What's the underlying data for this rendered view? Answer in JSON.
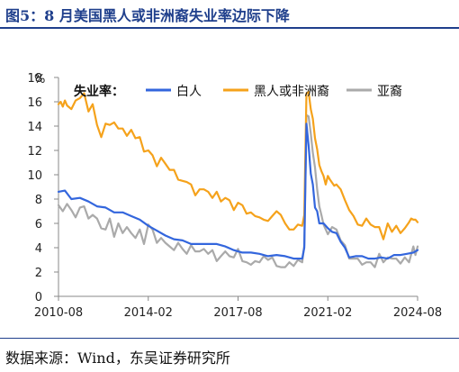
{
  "figure": {
    "title": "图5：8 月美国黑人或非洲裔失业率边际下降",
    "source": "数据来源：Wind，东吴证券研究所"
  },
  "chart_data": {
    "type": "line",
    "yunit": "%",
    "ylim": [
      0,
      18
    ],
    "yticks": [
      0,
      2,
      4,
      6,
      8,
      10,
      12,
      14,
      16,
      18
    ],
    "xlim": [
      "2010-08",
      "2024-08"
    ],
    "xticks": [
      "2010-08",
      "2014-02",
      "2017-08",
      "2021-02",
      "2024-08"
    ],
    "legend_title": "失业率：",
    "legend_position": "top",
    "grid": false,
    "series": [
      {
        "name": "白人",
        "color": "#3366dd",
        "points": [
          [
            "2010-08",
            8.6
          ],
          [
            "2010-11",
            8.7
          ],
          [
            "2011-02",
            8.0
          ],
          [
            "2011-06",
            8.1
          ],
          [
            "2011-10",
            7.8
          ],
          [
            "2012-02",
            7.4
          ],
          [
            "2012-06",
            7.3
          ],
          [
            "2012-10",
            6.9
          ],
          [
            "2013-02",
            6.9
          ],
          [
            "2013-06",
            6.6
          ],
          [
            "2013-10",
            6.3
          ],
          [
            "2014-02",
            5.8
          ],
          [
            "2014-06",
            5.4
          ],
          [
            "2014-10",
            5.0
          ],
          [
            "2015-02",
            4.7
          ],
          [
            "2015-06",
            4.6
          ],
          [
            "2015-10",
            4.3
          ],
          [
            "2016-02",
            4.3
          ],
          [
            "2016-06",
            4.3
          ],
          [
            "2016-10",
            4.3
          ],
          [
            "2017-02",
            4.1
          ],
          [
            "2017-06",
            3.8
          ],
          [
            "2017-10",
            3.6
          ],
          [
            "2018-02",
            3.6
          ],
          [
            "2018-06",
            3.5
          ],
          [
            "2018-10",
            3.3
          ],
          [
            "2019-02",
            3.4
          ],
          [
            "2019-06",
            3.3
          ],
          [
            "2019-10",
            3.1
          ],
          [
            "2020-02",
            3.1
          ],
          [
            "2020-03",
            4.0
          ],
          [
            "2020-04",
            14.2
          ],
          [
            "2020-05",
            12.4
          ],
          [
            "2020-06",
            10.1
          ],
          [
            "2020-07",
            9.2
          ],
          [
            "2020-08",
            7.3
          ],
          [
            "2020-09",
            7.0
          ],
          [
            "2020-10",
            6.0
          ],
          [
            "2020-12",
            6.0
          ],
          [
            "2021-02",
            5.6
          ],
          [
            "2021-04",
            5.3
          ],
          [
            "2021-06",
            5.2
          ],
          [
            "2021-08",
            4.5
          ],
          [
            "2021-10",
            4.0
          ],
          [
            "2021-12",
            3.2
          ],
          [
            "2022-03",
            3.3
          ],
          [
            "2022-06",
            3.3
          ],
          [
            "2022-09",
            3.1
          ],
          [
            "2022-12",
            3.1
          ],
          [
            "2023-03",
            3.2
          ],
          [
            "2023-06",
            3.1
          ],
          [
            "2023-09",
            3.4
          ],
          [
            "2023-12",
            3.4
          ],
          [
            "2024-03",
            3.5
          ],
          [
            "2024-06",
            3.6
          ],
          [
            "2024-08",
            3.8
          ]
        ]
      },
      {
        "name": "黑人或非洲裔",
        "color": "#f5a21b",
        "points": [
          [
            "2010-08",
            15.8
          ],
          [
            "2010-09",
            16.0
          ],
          [
            "2010-10",
            15.6
          ],
          [
            "2010-11",
            16.1
          ],
          [
            "2010-12",
            15.7
          ],
          [
            "2011-02",
            15.4
          ],
          [
            "2011-04",
            16.1
          ],
          [
            "2011-06",
            16.3
          ],
          [
            "2011-08",
            16.7
          ],
          [
            "2011-10",
            15.2
          ],
          [
            "2011-12",
            15.8
          ],
          [
            "2012-02",
            14.1
          ],
          [
            "2012-04",
            13.1
          ],
          [
            "2012-06",
            14.2
          ],
          [
            "2012-08",
            14.1
          ],
          [
            "2012-10",
            14.3
          ],
          [
            "2012-12",
            13.8
          ],
          [
            "2013-02",
            13.8
          ],
          [
            "2013-04",
            13.2
          ],
          [
            "2013-06",
            13.7
          ],
          [
            "2013-08",
            13.0
          ],
          [
            "2013-10",
            13.1
          ],
          [
            "2013-12",
            11.9
          ],
          [
            "2014-02",
            12.0
          ],
          [
            "2014-04",
            11.6
          ],
          [
            "2014-06",
            10.7
          ],
          [
            "2014-08",
            11.4
          ],
          [
            "2014-10",
            10.9
          ],
          [
            "2014-12",
            10.4
          ],
          [
            "2015-02",
            10.4
          ],
          [
            "2015-04",
            9.6
          ],
          [
            "2015-06",
            9.5
          ],
          [
            "2015-08",
            9.4
          ],
          [
            "2015-10",
            9.2
          ],
          [
            "2015-12",
            8.3
          ],
          [
            "2016-02",
            8.8
          ],
          [
            "2016-04",
            8.8
          ],
          [
            "2016-06",
            8.6
          ],
          [
            "2016-08",
            8.1
          ],
          [
            "2016-10",
            8.6
          ],
          [
            "2016-12",
            7.8
          ],
          [
            "2017-02",
            8.1
          ],
          [
            "2017-04",
            7.9
          ],
          [
            "2017-06",
            7.1
          ],
          [
            "2017-08",
            7.7
          ],
          [
            "2017-10",
            7.5
          ],
          [
            "2017-12",
            6.8
          ],
          [
            "2018-02",
            6.9
          ],
          [
            "2018-04",
            6.6
          ],
          [
            "2018-06",
            6.5
          ],
          [
            "2018-08",
            6.3
          ],
          [
            "2018-10",
            6.2
          ],
          [
            "2018-12",
            6.6
          ],
          [
            "2019-02",
            7.0
          ],
          [
            "2019-04",
            6.7
          ],
          [
            "2019-06",
            6.0
          ],
          [
            "2019-08",
            5.5
          ],
          [
            "2019-10",
            5.5
          ],
          [
            "2019-12",
            5.9
          ],
          [
            "2020-02",
            5.8
          ],
          [
            "2020-03",
            6.7
          ],
          [
            "2020-04",
            16.7
          ],
          [
            "2020-05",
            16.8
          ],
          [
            "2020-06",
            15.4
          ],
          [
            "2020-07",
            14.6
          ],
          [
            "2020-08",
            13.0
          ],
          [
            "2020-09",
            12.1
          ],
          [
            "2020-10",
            10.8
          ],
          [
            "2020-11",
            10.3
          ],
          [
            "2020-12",
            9.9
          ],
          [
            "2021-01",
            9.2
          ],
          [
            "2021-02",
            9.9
          ],
          [
            "2021-03",
            9.6
          ],
          [
            "2021-05",
            9.1
          ],
          [
            "2021-06",
            9.2
          ],
          [
            "2021-08",
            8.8
          ],
          [
            "2021-10",
            7.9
          ],
          [
            "2021-12",
            7.1
          ],
          [
            "2022-02",
            6.6
          ],
          [
            "2022-04",
            5.9
          ],
          [
            "2022-06",
            5.8
          ],
          [
            "2022-08",
            6.4
          ],
          [
            "2022-10",
            5.9
          ],
          [
            "2022-12",
            5.7
          ],
          [
            "2023-02",
            5.7
          ],
          [
            "2023-04",
            4.7
          ],
          [
            "2023-06",
            6.0
          ],
          [
            "2023-08",
            5.3
          ],
          [
            "2023-10",
            5.8
          ],
          [
            "2023-12",
            5.2
          ],
          [
            "2024-02",
            5.6
          ],
          [
            "2024-04",
            6.1
          ],
          [
            "2024-05",
            6.4
          ],
          [
            "2024-06",
            6.3
          ],
          [
            "2024-07",
            6.3
          ],
          [
            "2024-08",
            6.1
          ]
        ]
      },
      {
        "name": "亚裔",
        "color": "#aaaaaa",
        "points": [
          [
            "2010-08",
            7.5
          ],
          [
            "2010-10",
            7.0
          ],
          [
            "2010-12",
            7.6
          ],
          [
            "2011-02",
            7.1
          ],
          [
            "2011-04",
            6.5
          ],
          [
            "2011-06",
            7.3
          ],
          [
            "2011-08",
            7.4
          ],
          [
            "2011-10",
            6.4
          ],
          [
            "2011-12",
            6.7
          ],
          [
            "2012-02",
            6.4
          ],
          [
            "2012-04",
            5.6
          ],
          [
            "2012-06",
            5.5
          ],
          [
            "2012-08",
            6.4
          ],
          [
            "2012-10",
            4.9
          ],
          [
            "2012-12",
            6.0
          ],
          [
            "2013-02",
            5.2
          ],
          [
            "2013-04",
            5.7
          ],
          [
            "2013-06",
            5.2
          ],
          [
            "2013-08",
            4.8
          ],
          [
            "2013-10",
            5.5
          ],
          [
            "2013-12",
            4.3
          ],
          [
            "2014-02",
            5.9
          ],
          [
            "2014-04",
            5.5
          ],
          [
            "2014-06",
            4.4
          ],
          [
            "2014-08",
            4.8
          ],
          [
            "2014-10",
            4.4
          ],
          [
            "2014-12",
            4.1
          ],
          [
            "2015-02",
            3.8
          ],
          [
            "2015-04",
            4.4
          ],
          [
            "2015-06",
            3.9
          ],
          [
            "2015-08",
            3.5
          ],
          [
            "2015-10",
            4.2
          ],
          [
            "2015-12",
            3.7
          ],
          [
            "2016-02",
            3.7
          ],
          [
            "2016-04",
            3.9
          ],
          [
            "2016-06",
            3.5
          ],
          [
            "2016-08",
            3.8
          ],
          [
            "2016-10",
            2.9
          ],
          [
            "2016-12",
            3.3
          ],
          [
            "2017-02",
            3.7
          ],
          [
            "2017-04",
            3.3
          ],
          [
            "2017-06",
            3.2
          ],
          [
            "2017-08",
            3.9
          ],
          [
            "2017-10",
            2.9
          ],
          [
            "2017-12",
            2.8
          ],
          [
            "2018-02",
            2.6
          ],
          [
            "2018-04",
            2.9
          ],
          [
            "2018-06",
            2.8
          ],
          [
            "2018-08",
            3.3
          ],
          [
            "2018-10",
            3.0
          ],
          [
            "2018-12",
            3.2
          ],
          [
            "2019-02",
            2.5
          ],
          [
            "2019-04",
            2.4
          ],
          [
            "2019-06",
            2.4
          ],
          [
            "2019-08",
            2.8
          ],
          [
            "2019-10",
            2.5
          ],
          [
            "2019-12",
            3.0
          ],
          [
            "2020-02",
            2.8
          ],
          [
            "2020-03",
            4.2
          ],
          [
            "2020-04",
            14.9
          ],
          [
            "2020-05",
            14.8
          ],
          [
            "2020-06",
            13.4
          ],
          [
            "2020-07",
            11.8
          ],
          [
            "2020-08",
            10.6
          ],
          [
            "2020-09",
            8.8
          ],
          [
            "2020-10",
            7.4
          ],
          [
            "2020-11",
            6.7
          ],
          [
            "2020-12",
            5.9
          ],
          [
            "2021-02",
            5.1
          ],
          [
            "2021-04",
            5.7
          ],
          [
            "2021-06",
            5.5
          ],
          [
            "2021-08",
            4.6
          ],
          [
            "2021-10",
            4.2
          ],
          [
            "2021-12",
            3.1
          ],
          [
            "2022-02",
            3.1
          ],
          [
            "2022-04",
            3.1
          ],
          [
            "2022-06",
            2.6
          ],
          [
            "2022-08",
            2.8
          ],
          [
            "2022-10",
            2.8
          ],
          [
            "2022-12",
            2.4
          ],
          [
            "2023-02",
            3.5
          ],
          [
            "2023-04",
            2.8
          ],
          [
            "2023-06",
            3.2
          ],
          [
            "2023-08",
            3.1
          ],
          [
            "2023-10",
            3.1
          ],
          [
            "2023-12",
            2.7
          ],
          [
            "2024-02",
            3.2
          ],
          [
            "2024-04",
            2.8
          ],
          [
            "2024-06",
            4.1
          ],
          [
            "2024-07",
            3.4
          ],
          [
            "2024-08",
            4.1
          ]
        ]
      }
    ]
  }
}
